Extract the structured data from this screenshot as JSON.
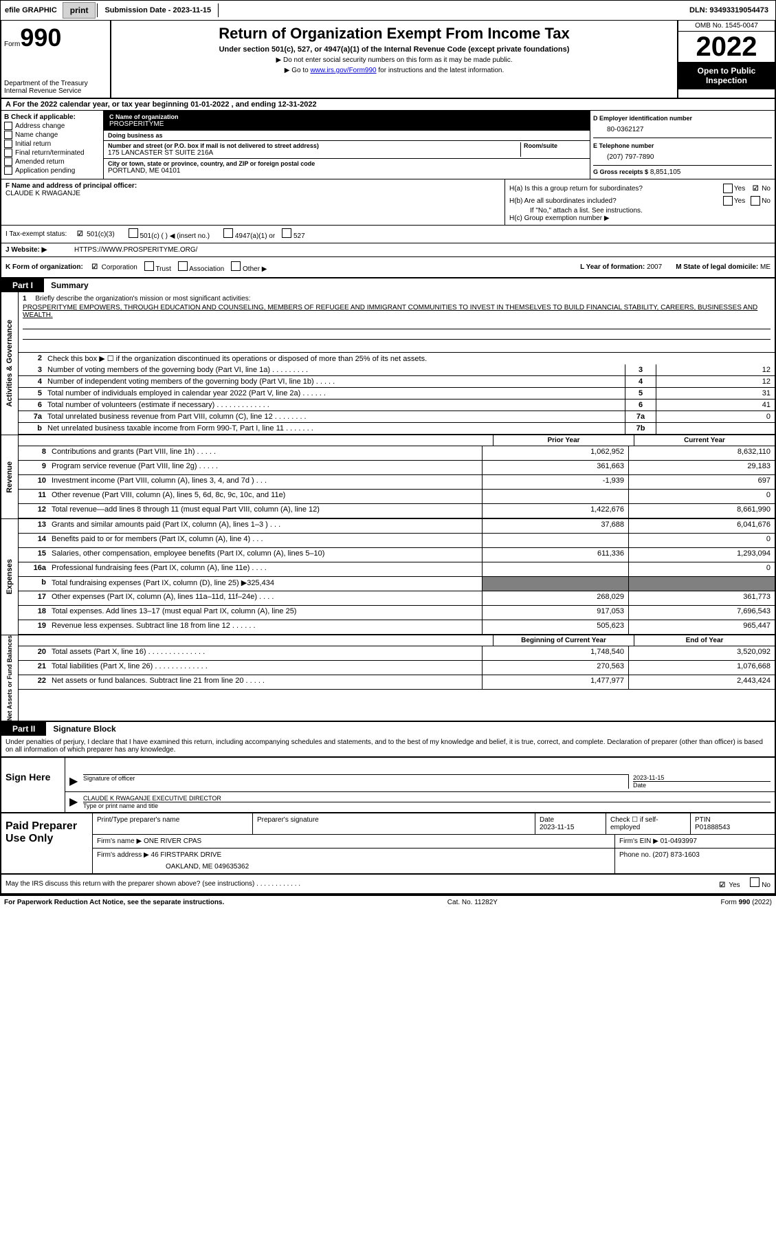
{
  "top_bar": {
    "efile": "efile GRAPHIC",
    "print": "print",
    "submission": "Submission Date - 2023-11-15",
    "dln": "DLN: 93493319054473"
  },
  "header": {
    "form_prefix": "Form",
    "form_number": "990",
    "dept": "Department of the Treasury Internal Revenue Service",
    "title": "Return of Organization Exempt From Income Tax",
    "sub1": "Under section 501(c), 527, or 4947(a)(1) of the Internal Revenue Code (except private foundations)",
    "sub2": "▶ Do not enter social security numbers on this form as it may be made public.",
    "sub3_prefix": "▶ Go to ",
    "sub3_link": "www.irs.gov/Form990",
    "sub3_suffix": " for instructions and the latest information.",
    "omb": "OMB No. 1545-0047",
    "year": "2022",
    "open": "Open to Public Inspection"
  },
  "section_a": {
    "text": "A For the 2022 calendar year, or tax year beginning 01-01-2022   , and ending 12-31-2022"
  },
  "section_b": {
    "header": "B Check if applicable:",
    "items": [
      "Address change",
      "Name change",
      "Initial return",
      "Final return/terminated",
      "Amended return",
      "Application pending"
    ]
  },
  "section_c": {
    "name_lbl": "C Name of organization",
    "name": "PROSPERITYME",
    "dba_lbl": "Doing business as",
    "dba": "",
    "street_lbl": "Number and street (or P.O. box if mail is not delivered to street address)",
    "street": "175 LANCASTER ST SUITE 216A",
    "room_lbl": "Room/suite",
    "city_lbl": "City or town, state or province, country, and ZIP or foreign postal code",
    "city": "PORTLAND, ME  04101"
  },
  "section_d": {
    "ein_lbl": "D Employer identification number",
    "ein": "80-0362127",
    "phone_lbl": "E Telephone number",
    "phone": "(207) 797-7890",
    "gross_lbl": "G Gross receipts $",
    "gross": "8,851,105"
  },
  "section_f": {
    "lbl": "F Name and address of principal officer:",
    "name": "CLAUDE K RWAGANJE"
  },
  "section_h": {
    "ha": "H(a)  Is this a group return for subordinates?",
    "hb": "H(b)  Are all subordinates included?",
    "hb_note": "If \"No,\" attach a list. See instructions.",
    "hc": "H(c)  Group exemption number ▶",
    "yes": "Yes",
    "no": "No"
  },
  "section_i": {
    "lbl": "I   Tax-exempt status:",
    "opt1": "501(c)(3)",
    "opt2": "501(c) (  ) ◀ (insert no.)",
    "opt3": "4947(a)(1) or",
    "opt4": "527"
  },
  "section_j": {
    "lbl": "J   Website: ▶",
    "url": "HTTPS://WWW.PROSPERITYME.ORG/"
  },
  "section_k": {
    "lbl": "K Form of organization:",
    "corp": "Corporation",
    "trust": "Trust",
    "assoc": "Association",
    "other": "Other ▶",
    "year_lbl": "L Year of formation:",
    "year": "2007",
    "state_lbl": "M State of legal domicile:",
    "state": "ME"
  },
  "part1": {
    "label": "Part I",
    "title": "Summary",
    "side_labels": {
      "activities": "Activities & Governance",
      "revenue": "Revenue",
      "expenses": "Expenses",
      "net": "Net Assets or Fund Balances"
    },
    "line1_lbl": "Briefly describe the organization's mission or most significant activities:",
    "line1_text": "PROSPERITYME EMPOWERS, THROUGH EDUCATION AND COUNSELING, MEMBERS OF REFUGEE AND IMMIGRANT COMMUNITIES TO INVEST IN THEMSELVES TO BUILD FINANCIAL STABILITY, CAREERS, BUSINESSES AND WEALTH.",
    "line2": "Check this box ▶ ☐  if the organization discontinued its operations or disposed of more than 25% of its net assets.",
    "rows_single": [
      {
        "num": "3",
        "text": "Number of voting members of the governing body (Part VI, line 1a)   .    .    .    .    .    .    .    .    .",
        "box": "3",
        "val": "12"
      },
      {
        "num": "4",
        "text": "Number of independent voting members of the governing body (Part VI, line 1b)   .    .    .    .    .",
        "box": "4",
        "val": "12"
      },
      {
        "num": "5",
        "text": "Total number of individuals employed in calendar year 2022 (Part V, line 2a)   .    .    .    .    .    .",
        "box": "5",
        "val": "31"
      },
      {
        "num": "6",
        "text": "Total number of volunteers (estimate if necessary)   .    .    .    .    .    .    .    .    .    .    .    .    .",
        "box": "6",
        "val": "41"
      },
      {
        "num": "7a",
        "text": "Total unrelated business revenue from Part VIII, column (C), line 12   .    .    .    .    .    .    .    .",
        "box": "7a",
        "val": "0"
      },
      {
        "num": "b",
        "text": "Net unrelated business taxable income from Form 990-T, Part I, line 11   .    .    .    .    .    .    .",
        "box": "7b",
        "val": ""
      }
    ],
    "col_headers": {
      "prior": "Prior Year",
      "current": "Current Year"
    },
    "revenue_rows": [
      {
        "num": "8",
        "text": "Contributions and grants (Part VIII, line 1h)   .    .    .    .    .",
        "prior": "1,062,952",
        "current": "8,632,110"
      },
      {
        "num": "9",
        "text": "Program service revenue (Part VIII, line 2g)   .    .    .    .    .",
        "prior": "361,663",
        "current": "29,183"
      },
      {
        "num": "10",
        "text": "Investment income (Part VIII, column (A), lines 3, 4, and 7d )   .    .    .",
        "prior": "-1,939",
        "current": "697"
      },
      {
        "num": "11",
        "text": "Other revenue (Part VIII, column (A), lines 5, 6d, 8c, 9c, 10c, and 11e)",
        "prior": "",
        "current": "0"
      },
      {
        "num": "12",
        "text": "Total revenue—add lines 8 through 11 (must equal Part VIII, column (A), line 12)",
        "prior": "1,422,676",
        "current": "8,661,990"
      }
    ],
    "expense_rows": [
      {
        "num": "13",
        "text": "Grants and similar amounts paid (Part IX, column (A), lines 1–3 )   .    .    .",
        "prior": "37,688",
        "current": "6,041,676"
      },
      {
        "num": "14",
        "text": "Benefits paid to or for members (Part IX, column (A), line 4)   .    .    .",
        "prior": "",
        "current": "0"
      },
      {
        "num": "15",
        "text": "Salaries, other compensation, employee benefits (Part IX, column (A), lines 5–10)",
        "prior": "611,336",
        "current": "1,293,094"
      },
      {
        "num": "16a",
        "text": "Professional fundraising fees (Part IX, column (A), line 11e)   .    .    .    .",
        "prior": "",
        "current": "0"
      },
      {
        "num": "b",
        "text": "Total fundraising expenses (Part IX, column (D), line 25) ▶325,434",
        "prior": "shaded",
        "current": "shaded"
      },
      {
        "num": "17",
        "text": "Other expenses (Part IX, column (A), lines 11a–11d, 11f–24e)   .    .    .    .",
        "prior": "268,029",
        "current": "361,773"
      },
      {
        "num": "18",
        "text": "Total expenses. Add lines 13–17 (must equal Part IX, column (A), line 25)",
        "prior": "917,053",
        "current": "7,696,543"
      },
      {
        "num": "19",
        "text": "Revenue less expenses. Subtract line 18 from line 12   .    .    .    .    .    .",
        "prior": "505,623",
        "current": "965,447"
      }
    ],
    "net_headers": {
      "begin": "Beginning of Current Year",
      "end": "End of Year"
    },
    "net_rows": [
      {
        "num": "20",
        "text": "Total assets (Part X, line 16)   .    .    .    .    .    .    .    .    .    .    .    .    .    .",
        "prior": "1,748,540",
        "current": "3,520,092"
      },
      {
        "num": "21",
        "text": "Total liabilities (Part X, line 26)   .    .    .    .    .    .    .    .    .    .    .    .    .",
        "prior": "270,563",
        "current": "1,076,668"
      },
      {
        "num": "22",
        "text": "Net assets or fund balances. Subtract line 21 from line 20   .    .    .    .    .",
        "prior": "1,477,977",
        "current": "2,443,424"
      }
    ]
  },
  "part2": {
    "label": "Part II",
    "title": "Signature Block",
    "declaration": "Under penalties of perjury, I declare that I have examined this return, including accompanying schedules and statements, and to the best of my knowledge and belief, it is true, correct, and complete. Declaration of preparer (other than officer) is based on all information of which preparer has any knowledge.",
    "sign_here": "Sign Here",
    "sig_officer": "Signature of officer",
    "sig_date": "2023-11-15",
    "date_lbl": "Date",
    "officer_name": "CLAUDE K RWAGANJE  EXECUTIVE DIRECTOR",
    "type_name": "Type or print name and title"
  },
  "preparer": {
    "label": "Paid Preparer Use Only",
    "print_name_lbl": "Print/Type preparer's name",
    "prep_sig_lbl": "Preparer's signature",
    "date_lbl": "Date",
    "date": "2023-11-15",
    "check_lbl": "Check ☐ if self-employed",
    "ptin_lbl": "PTIN",
    "ptin": "P01888543",
    "firm_name_lbl": "Firm's name    ▶",
    "firm_name": "ONE RIVER CPAS",
    "firm_ein_lbl": "Firm's EIN ▶",
    "firm_ein": "01-0493997",
    "firm_addr_lbl": "Firm's address ▶",
    "firm_addr1": "46 FIRSTPARK DRIVE",
    "firm_addr2": "OAKLAND, ME  049635362",
    "phone_lbl": "Phone no.",
    "phone": "(207) 873-1603"
  },
  "footer": {
    "discuss": "May the IRS discuss this return with the preparer shown above? (see instructions)   .    .    .    .    .    .    .    .    .    .    .    .",
    "paperwork": "For Paperwork Reduction Act Notice, see the separate instructions.",
    "cat": "Cat. No. 11282Y",
    "form": "Form 990 (2022)"
  }
}
